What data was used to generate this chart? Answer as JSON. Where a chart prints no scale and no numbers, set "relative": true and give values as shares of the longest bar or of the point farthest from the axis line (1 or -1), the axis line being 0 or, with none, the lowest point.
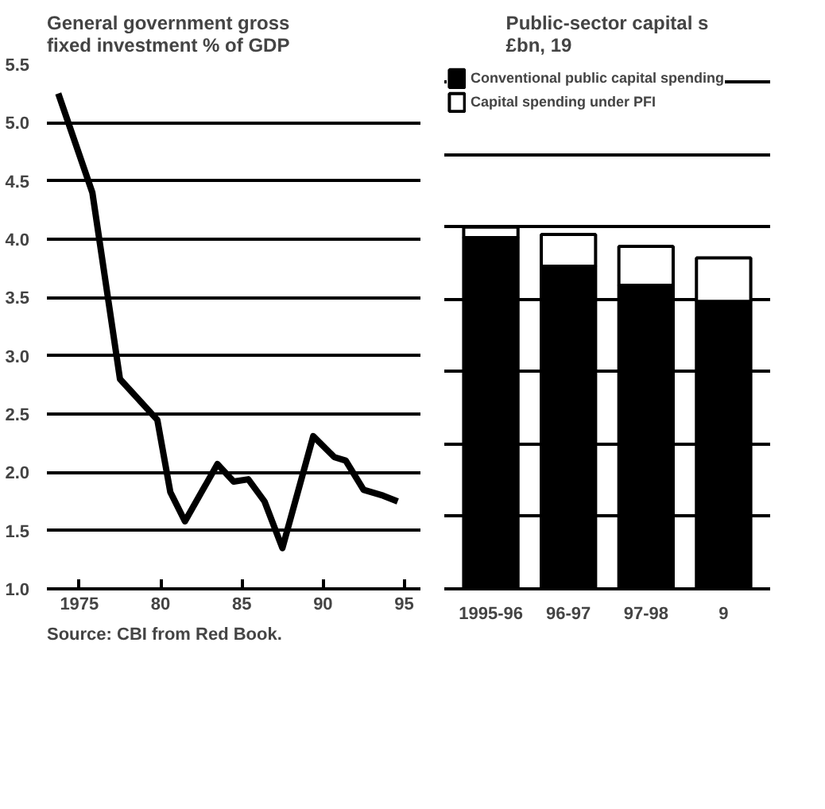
{
  "chart_data": [
    {
      "type": "line",
      "title": "General government gross fixed investment % of GDP",
      "annotations": [
        "Source: CBI from Red Book."
      ],
      "x": [
        1973.7,
        1975.8,
        1977.5,
        1979.8,
        1980.6,
        1981.5,
        1983.5,
        1984.5,
        1985.4,
        1986.4,
        1987.5,
        1989.4,
        1990.7,
        1991.4,
        1992.5,
        1993.7,
        1994.6
      ],
      "series": [
        {
          "color": "#000000",
          "values": [
            5.25,
            4.4,
            2.8,
            2.45,
            1.83,
            1.58,
            2.07,
            1.92,
            1.94,
            1.75,
            1.35,
            2.31,
            2.13,
            2.1,
            1.85,
            1.8,
            1.75
          ]
        }
      ],
      "xlim": [
        1973,
        1996
      ],
      "ylim": [
        1.0,
        5.5
      ],
      "xticks": [
        1975,
        {
          "value": 1980,
          "label": "80"
        },
        {
          "value": 1985,
          "label": "85"
        },
        {
          "value": 1990,
          "label": "90"
        },
        {
          "value": 1995,
          "label": "95"
        }
      ],
      "yticks": [
        {
          "value": 1.0,
          "label": "1.0"
        },
        1.5,
        {
          "value": 2.0,
          "label": "2.0"
        },
        2.5,
        {
          "value": 3.0,
          "label": "3.0"
        },
        3.5,
        {
          "value": 4.0,
          "label": "4.0"
        },
        4.5,
        {
          "value": 5.0,
          "label": "5.0"
        },
        5.5
      ],
      "grid": "y"
    },
    {
      "type": "bar",
      "title": "Public-sector capital s £bn, 19",
      "stacked": true,
      "relative": true,
      "categories": [
        "1995-96",
        "96-97",
        "97-98",
        "9"
      ],
      "series": [
        {
          "name": "Conventional public capital spending",
          "color": "#000000",
          "values": [
            0.971,
            0.892,
            0.839,
            0.795
          ]
        },
        {
          "name": "Capital spending under PFI",
          "color": "#ffffff",
          "values": [
            0.029,
            0.088,
            0.108,
            0.12
          ]
        }
      ],
      "grid": "y",
      "legend": "top"
    }
  ]
}
